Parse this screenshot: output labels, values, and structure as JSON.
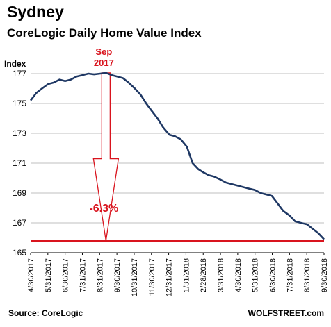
{
  "header": {
    "title": "Sydney",
    "subtitle": "CoreLogic Daily Home Value Index"
  },
  "footer": {
    "source": "Source: CoreLogic",
    "brand": "WOLFSTREET.com"
  },
  "colors": {
    "series": "#1f3864",
    "accent": "#d9141e",
    "grid": "#bfbfbf"
  },
  "chart_data": {
    "type": "line",
    "title": "CoreLogic Daily Home Value Index",
    "ylabel": "Index",
    "xlabel": "",
    "ylim": [
      165,
      177
    ],
    "yticks": [
      165,
      167,
      169,
      171,
      173,
      175,
      177
    ],
    "xlim": [
      "2017-04-30",
      "2018-09-30"
    ],
    "xtick_labels": [
      "4/30/2017",
      "5/31/2017",
      "6/30/2017",
      "7/31/2017",
      "8/31/2017",
      "9/30/2017",
      "10/31/2017",
      "11/30/2017",
      "12/31/2017",
      "1/31/2018",
      "2/28/2018",
      "3/31/2018",
      "4/30/2018",
      "5/31/2018",
      "6/30/2018",
      "7/31/2018",
      "8/31/2018",
      "9/30/2018"
    ],
    "grid": "horizontal",
    "series": [
      {
        "values": [
          [
            "2017-04-30",
            175.2
          ],
          [
            "2017-05-10",
            175.7
          ],
          [
            "2017-05-20",
            176.0
          ],
          [
            "2017-05-31",
            176.3
          ],
          [
            "2017-06-10",
            176.4
          ],
          [
            "2017-06-20",
            176.6
          ],
          [
            "2017-06-30",
            176.5
          ],
          [
            "2017-07-10",
            176.6
          ],
          [
            "2017-07-20",
            176.8
          ],
          [
            "2017-07-31",
            176.9
          ],
          [
            "2017-08-10",
            177.0
          ],
          [
            "2017-08-20",
            176.95
          ],
          [
            "2017-08-31",
            177.0
          ],
          [
            "2017-09-10",
            177.05
          ],
          [
            "2017-09-20",
            176.9
          ],
          [
            "2017-09-30",
            176.8
          ],
          [
            "2017-10-10",
            176.7
          ],
          [
            "2017-10-20",
            176.4
          ],
          [
            "2017-10-31",
            176.0
          ],
          [
            "2017-11-10",
            175.6
          ],
          [
            "2017-11-20",
            175.0
          ],
          [
            "2017-11-30",
            174.5
          ],
          [
            "2017-12-10",
            174.0
          ],
          [
            "2017-12-20",
            173.4
          ],
          [
            "2017-12-31",
            172.9
          ],
          [
            "2018-01-10",
            172.8
          ],
          [
            "2018-01-20",
            172.6
          ],
          [
            "2018-01-31",
            172.1
          ],
          [
            "2018-02-10",
            171.0
          ],
          [
            "2018-02-20",
            170.6
          ],
          [
            "2018-02-28",
            170.4
          ],
          [
            "2018-03-10",
            170.2
          ],
          [
            "2018-03-20",
            170.1
          ],
          [
            "2018-03-31",
            169.9
          ],
          [
            "2018-04-10",
            169.7
          ],
          [
            "2018-04-20",
            169.6
          ],
          [
            "2018-04-30",
            169.5
          ],
          [
            "2018-05-10",
            169.4
          ],
          [
            "2018-05-20",
            169.3
          ],
          [
            "2018-05-31",
            169.2
          ],
          [
            "2018-06-10",
            169.0
          ],
          [
            "2018-06-20",
            168.9
          ],
          [
            "2018-06-30",
            168.8
          ],
          [
            "2018-07-10",
            168.3
          ],
          [
            "2018-07-20",
            167.8
          ],
          [
            "2018-07-31",
            167.5
          ],
          [
            "2018-08-10",
            167.1
          ],
          [
            "2018-08-20",
            167.0
          ],
          [
            "2018-08-31",
            166.9
          ],
          [
            "2018-09-10",
            166.6
          ],
          [
            "2018-09-20",
            166.3
          ],
          [
            "2018-09-30",
            165.9
          ]
        ]
      }
    ],
    "reference_line": {
      "y": 165.8
    },
    "annotations": {
      "peak_label_line1": "Sep",
      "peak_label_line2": "2017",
      "peak_date": "2017-09-10",
      "peak_value": 177.05,
      "decline_label": "-6.3%"
    }
  }
}
